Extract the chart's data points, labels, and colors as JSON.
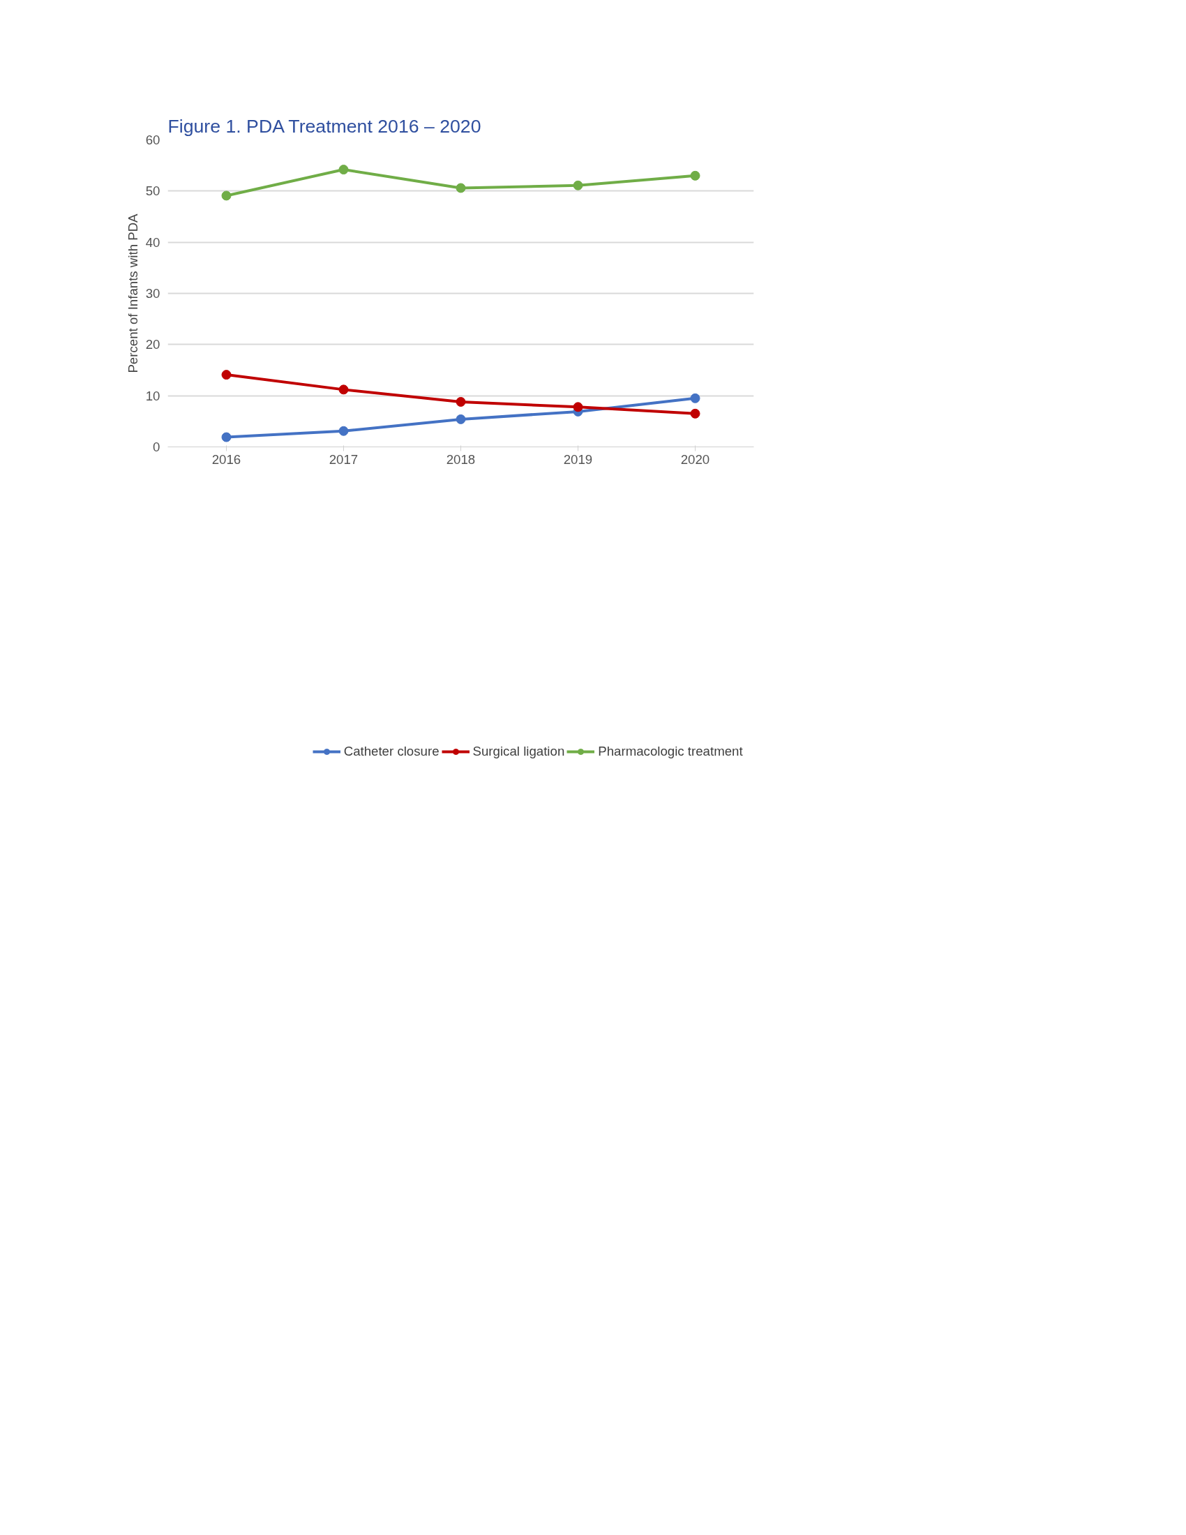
{
  "chart_data": {
    "type": "line",
    "title": "Figure 1. PDA Treatment 2016 – 2020",
    "ylabel": "Percent of Infants with PDA",
    "categories": [
      "2016",
      "2017",
      "2018",
      "2019",
      "2020"
    ],
    "series": [
      {
        "name": "Catheter closure",
        "color": "#4472c4",
        "values": [
          1.9,
          3.1,
          5.4,
          6.9,
          9.5
        ]
      },
      {
        "name": "Surgical ligation",
        "color": "#c00000",
        "values": [
          14.1,
          11.2,
          8.8,
          7.8,
          6.5
        ]
      },
      {
        "name": "Pharmacologic treatment",
        "color": "#70ad47",
        "values": [
          49.1,
          54.2,
          50.6,
          51.1,
          53.0
        ]
      }
    ],
    "ylim": [
      0,
      60
    ],
    "yticks": [
      0,
      10,
      20,
      30,
      40,
      50,
      60
    ],
    "grid": "y",
    "legend": "bottom",
    "marker": "circle",
    "line_style": "solid"
  }
}
